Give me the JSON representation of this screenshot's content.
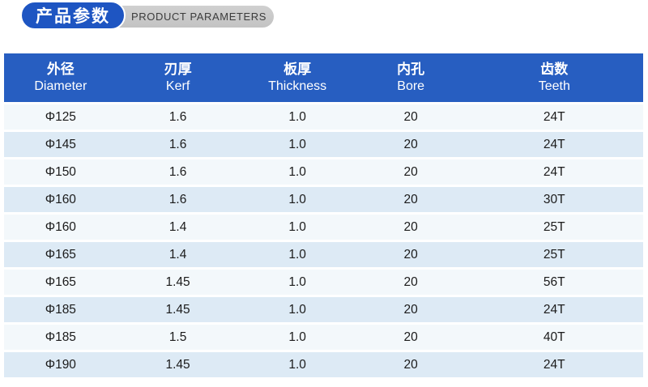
{
  "badge": {
    "title_cn": "产品参数",
    "title_en": "PRODUCT PARAMETERS",
    "pill_blue": "#1e55c2",
    "pill_gray": "#c9c9c9"
  },
  "table": {
    "header_color": "#275ec1",
    "row_light": "#f3f8fb",
    "row_shaded": "#ddeaf5",
    "columns": [
      {
        "cn": "外径",
        "en": "Diameter"
      },
      {
        "cn": "刃厚",
        "en": "Kerf"
      },
      {
        "cn": "板厚",
        "en": "Thickness"
      },
      {
        "cn": "内孔",
        "en": "Bore"
      },
      {
        "cn": "齿数",
        "en": "Teeth"
      }
    ],
    "rows": [
      [
        "Φ125",
        "1.6",
        "1.0",
        "20",
        "24T"
      ],
      [
        "Φ145",
        "1.6",
        "1.0",
        "20",
        "24T"
      ],
      [
        "Φ150",
        "1.6",
        "1.0",
        "20",
        "24T"
      ],
      [
        "Φ160",
        "1.6",
        "1.0",
        "20",
        "30T"
      ],
      [
        "Φ160",
        "1.4",
        "1.0",
        "20",
        "25T"
      ],
      [
        "Φ165",
        "1.4",
        "1.0",
        "20",
        "25T"
      ],
      [
        "Φ165",
        "1.45",
        "1.0",
        "20",
        "56T"
      ],
      [
        "Φ185",
        "1.45",
        "1.0",
        "20",
        "24T"
      ],
      [
        "Φ185",
        "1.5",
        "1.0",
        "20",
        "40T"
      ],
      [
        "Φ190",
        "1.45",
        "1.0",
        "20",
        "24T"
      ]
    ]
  }
}
